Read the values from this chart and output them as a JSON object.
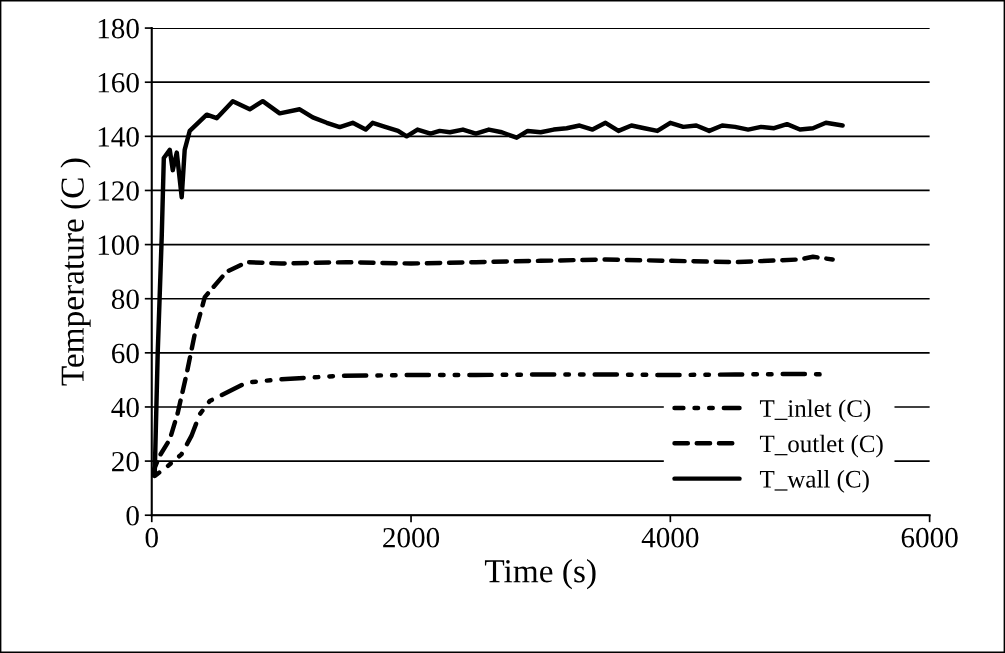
{
  "chart_data": {
    "type": "line",
    "xlabel": "Time (s)",
    "ylabel": "Temperature (C )",
    "xlim": [
      0,
      6000
    ],
    "xticks": [
      0,
      2000,
      4000,
      6000
    ],
    "ylim": [
      0,
      180
    ],
    "yticks": [
      0,
      20,
      40,
      60,
      80,
      100,
      120,
      140,
      160,
      180
    ],
    "grid": "y",
    "legend": "bottom right",
    "marker": "none",
    "series": [
      {
        "name": "T_inlet (C)",
        "color": "#000000",
        "line_style": "dash-dot-dot",
        "x": [
          0,
          23,
          120,
          229,
          306,
          370,
          447,
          730,
          987,
          1450,
          2000,
          2500,
          3000,
          3500,
          4000,
          4500,
          5000,
          5205
        ],
        "values": [
          15,
          14.5,
          18,
          22.5,
          29.3,
          37.3,
          42.2,
          49,
          50.2,
          51.5,
          51.8,
          51.8,
          52,
          52,
          51.8,
          52,
          52.2,
          52
        ]
      },
      {
        "name": "T_outlet (C)",
        "color": "#000000",
        "line_style": "dashed",
        "x": [
          0,
          62,
          139,
          200,
          270,
          332,
          409,
          578,
          733,
          1000,
          1500,
          2000,
          2500,
          3000,
          3500,
          4000,
          4500,
          5000,
          5100,
          5252
        ],
        "values": [
          15,
          22,
          28,
          37.7,
          52.5,
          67,
          80.6,
          90,
          93.5,
          93,
          93.5,
          93,
          93.5,
          94,
          94.5,
          94,
          93.5,
          94.5,
          95.5,
          94.5
        ]
      },
      {
        "name": "T_wall (C)",
        "color": "#000000",
        "line_style": "solid",
        "x": [
          0,
          23,
          46,
          77,
          93,
          139,
          162,
          193,
          231,
          254,
          293,
          424,
          501,
          625,
          756,
          856,
          987,
          1141,
          1242,
          1350,
          1450,
          1550,
          1650,
          1704,
          1800,
          1900,
          1966,
          2050,
          2150,
          2221,
          2300,
          2400,
          2500,
          2600,
          2700,
          2815,
          2900,
          3000,
          3100,
          3200,
          3300,
          3400,
          3500,
          3600,
          3700,
          3800,
          3900,
          4000,
          4100,
          4200,
          4300,
          4400,
          4500,
          4600,
          4700,
          4800,
          4900,
          5000,
          5100,
          5200,
          5329
        ],
        "values": [
          16,
          15.5,
          60,
          103,
          132,
          135,
          127.5,
          134,
          117.5,
          135,
          142,
          148,
          146.7,
          153,
          150,
          153,
          148.5,
          150,
          147,
          145,
          143.4,
          145,
          142.5,
          145,
          143.5,
          142,
          140,
          142.5,
          141,
          142,
          141.5,
          142.5,
          141,
          142.5,
          141.5,
          139.5,
          142,
          141.5,
          142.5,
          143,
          144,
          142.5,
          145,
          142,
          144,
          143,
          142,
          145,
          143.5,
          144,
          142,
          144,
          143.5,
          142.5,
          143.5,
          143,
          144.5,
          142.5,
          143,
          145,
          144
        ]
      }
    ]
  }
}
